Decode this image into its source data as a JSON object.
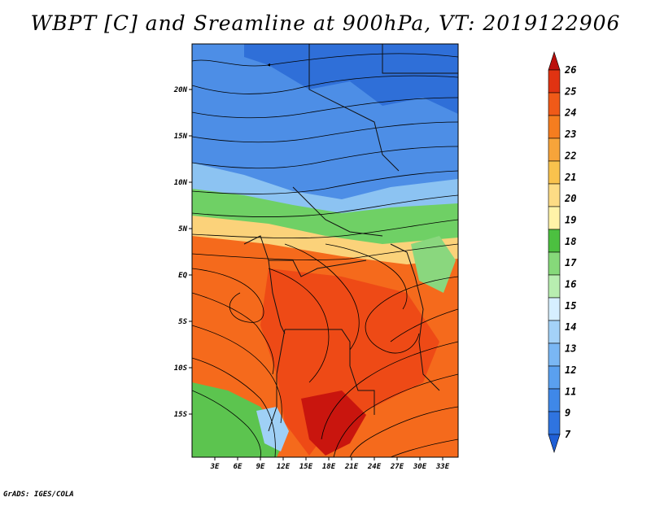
{
  "title": "WBPT [C] and Sreamline at 900hPa, VT: 2019122906",
  "credit": "GrADS: IGES/COLA",
  "map": {
    "variable": "WBPT [C]",
    "level": "900hPa",
    "valid_time": "2019122906",
    "lon_ticks": [
      "3E",
      "6E",
      "9E",
      "12E",
      "15E",
      "18E",
      "21E",
      "24E",
      "27E",
      "30E",
      "33E"
    ],
    "lat_ticks": [
      "20N",
      "15N",
      "10N",
      "5N",
      "EQ",
      "5S",
      "10S",
      "15S"
    ]
  },
  "colorbar": {
    "labels": [
      "7",
      "9",
      "11",
      "12",
      "13",
      "14",
      "15",
      "16",
      "17",
      "18",
      "19",
      "20",
      "21",
      "22",
      "23",
      "24",
      "25",
      "26"
    ],
    "colors": [
      "#1f5fd6",
      "#2f74e0",
      "#3f88e8",
      "#5aa0ef",
      "#7ab7f4",
      "#a4d2f8",
      "#d6efff",
      "#b8eeb0",
      "#86d97a",
      "#4cc040",
      "#fff3a8",
      "#fddc85",
      "#f9c24d",
      "#f7a43a",
      "#f57d1f",
      "#f05a18",
      "#e03312",
      "#bb0f0c"
    ]
  }
}
